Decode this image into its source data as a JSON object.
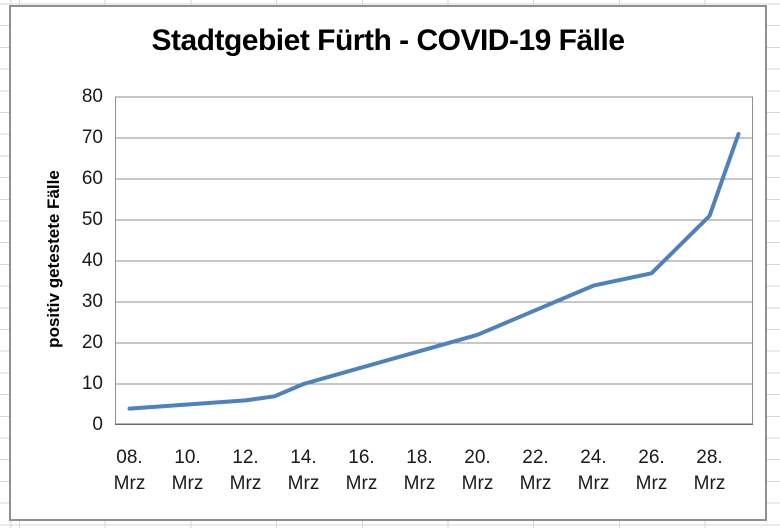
{
  "chart_data": {
    "type": "line",
    "title": "Stadtgebiet Fürth - COVID-19 Fälle",
    "ylabel": "positiv getestete Fälle",
    "xlabel": "",
    "ylim": [
      0,
      80
    ],
    "yticks": [
      0,
      10,
      20,
      30,
      40,
      50,
      60,
      70,
      80
    ],
    "x_domain_days": [
      8,
      30
    ],
    "xtick_labels": [
      "08. Mrz",
      "10. Mrz",
      "12. Mrz",
      "14. Mrz",
      "16. Mrz",
      "18. Mrz",
      "20. Mrz",
      "22. Mrz",
      "24. Mrz",
      "26. Mrz",
      "28. Mrz"
    ],
    "xtick_center_days": [
      8,
      10,
      12,
      14,
      16,
      18,
      20,
      22,
      24,
      26,
      28
    ],
    "grid": true,
    "legend": "none",
    "series": [
      {
        "name": "positiv getestete Fälle",
        "x_days": [
          8,
          10,
          12,
          13,
          14,
          16,
          18,
          20,
          22,
          24,
          26,
          28,
          29
        ],
        "values": [
          4,
          5,
          6,
          7,
          10,
          14,
          18,
          22,
          28,
          34,
          37,
          51,
          71
        ]
      }
    ],
    "colors": {
      "line": "#4F81BD",
      "gridline": "#8f8f8f",
      "axis_line": "#6b6b6b",
      "plot_border": "#8f8f8f",
      "tick_text": "#1a1a1a",
      "title_text": "#000000"
    }
  }
}
